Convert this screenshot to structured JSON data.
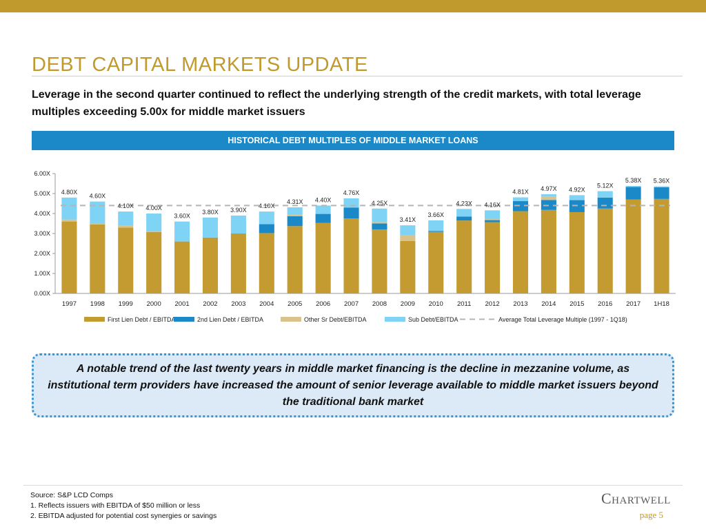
{
  "header": {
    "title": "DEBT CAPITAL MARKETS UPDATE",
    "subtitle": "Leverage in the second quarter continued to reflect the underlying strength of the credit markets, with total leverage multiples exceeding 5.00x for middle market issuers",
    "chart_banner": "HISTORICAL DEBT MULTIPLES OF MIDDLE MARKET LOANS"
  },
  "colors": {
    "gold": "#c19a2e",
    "first_lien": "#c39b31",
    "second_lien": "#1b88c8",
    "other_sr": "#d9c38a",
    "sub_debt": "#7fd3f4",
    "average_line": "#b5b5b5"
  },
  "chart_data": {
    "type": "bar",
    "stacked": true,
    "categories": [
      "1997",
      "1998",
      "1999",
      "2000",
      "2001",
      "2002",
      "2003",
      "2004",
      "2005",
      "2006",
      "2007",
      "2008",
      "2009",
      "2010",
      "2011",
      "2012",
      "2013",
      "2014",
      "2015",
      "2016",
      "2017",
      "1H18"
    ],
    "series": [
      {
        "name": "First Lien Debt / EBITDA",
        "values": [
          3.6,
          3.45,
          3.3,
          3.07,
          2.6,
          2.8,
          3.0,
          3.02,
          3.37,
          3.53,
          3.75,
          3.2,
          2.63,
          3.08,
          3.65,
          3.57,
          4.12,
          4.18,
          4.07,
          4.25,
          4.7,
          4.73
        ]
      },
      {
        "name": "2nd Lien Debt / EBITDA",
        "values": [
          0.0,
          0.0,
          0.0,
          0.0,
          0.0,
          0.0,
          0.0,
          0.45,
          0.5,
          0.45,
          0.55,
          0.3,
          0.0,
          0.05,
          0.2,
          0.1,
          0.5,
          0.5,
          0.6,
          0.55,
          0.63,
          0.58
        ]
      },
      {
        "name": "Other Sr Debt/EBITDA",
        "values": [
          0.1,
          0.05,
          0.1,
          0.03,
          0.0,
          0.0,
          0.0,
          0.0,
          0.08,
          0.0,
          0.0,
          0.07,
          0.3,
          0.0,
          0.0,
          0.05,
          0.0,
          0.17,
          0.0,
          0.0,
          0.0,
          0.0
        ]
      },
      {
        "name": "Sub Debt/EBITDA",
        "values": [
          1.1,
          1.1,
          0.7,
          0.9,
          1.0,
          1.0,
          0.9,
          0.63,
          0.36,
          0.42,
          0.46,
          0.68,
          0.48,
          0.53,
          0.38,
          0.44,
          0.19,
          0.12,
          0.25,
          0.32,
          0.05,
          0.05
        ]
      }
    ],
    "totals": [
      4.8,
      4.6,
      4.1,
      4.0,
      3.6,
      3.8,
      3.9,
      4.1,
      4.31,
      4.4,
      4.76,
      4.25,
      3.41,
      3.66,
      4.23,
      4.16,
      4.81,
      4.97,
      4.92,
      5.12,
      5.38,
      5.36
    ],
    "total_labels": [
      "4.80X",
      "4.60X",
      "4.10X",
      "4.00X",
      "3.60X",
      "3.80X",
      "3.90X",
      "4.10X",
      "4.31X",
      "4.40X",
      "4.76X",
      "4.25X",
      "3.41X",
      "3.66X",
      "4.23X",
      "4.16X",
      "4.81X",
      "4.97X",
      "4.92X",
      "5.12X",
      "5.38X",
      "5.36X"
    ],
    "average_line": {
      "name": "Average Total Leverage Multiple (1997 - 1Q18)",
      "value": 4.4
    },
    "ylim": [
      0,
      6
    ],
    "yticks": [
      "0.00X",
      "1.00X",
      "2.00X",
      "3.00X",
      "4.00X",
      "5.00X",
      "6.00X"
    ],
    "title": "HISTORICAL DEBT MULTIPLES OF MIDDLE MARKET LOANS",
    "xlabel": "",
    "ylabel": "",
    "legend": "bottom",
    "grid": false
  },
  "callout": {
    "text": "A notable trend of the last twenty years in middle market financing is the decline in mezzanine volume, as institutional term providers have increased the amount of senior leverage available to middle market issuers beyond the traditional bank market"
  },
  "footer": {
    "source": "Source: S&P LCD Comps",
    "note1": "1. Reflects issuers with EBITDA of $50 million or less",
    "note2": "2. EBITDA adjusted for potential cost synergies or savings",
    "brand": "Chartwell",
    "page": "page 5"
  }
}
